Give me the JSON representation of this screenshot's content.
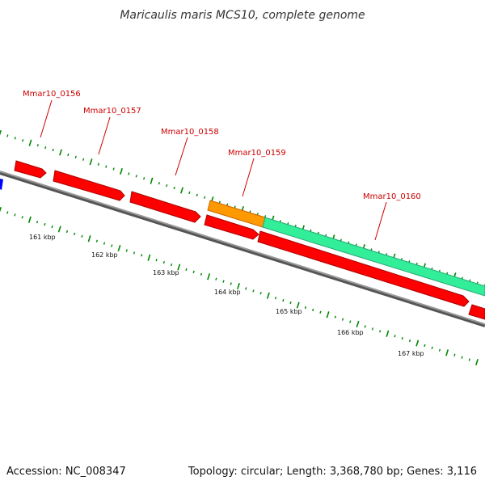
{
  "title": "Maricaulis maris MCS10, complete genome",
  "footer": {
    "accession": "Accession: NC_008347",
    "summary": "Topology: circular; Length: 3,368,780 bp; Genes: 3,116"
  },
  "colors": {
    "gene_forward": "#ff0000",
    "gene_highlight": "#ff9900",
    "gene_long": "#33ee99",
    "gene_left": "#0000ff",
    "backbone": "#888888",
    "ticks": "#008800",
    "label": "#cc0000"
  },
  "genes": [
    {
      "id": "Mmar10_0156"
    },
    {
      "id": "Mmar10_0157"
    },
    {
      "id": "Mmar10_0158"
    },
    {
      "id": "Mmar10_0159"
    },
    {
      "id": "Mmar10_0160"
    }
  ],
  "scale": {
    "unit": "kbp",
    "labels": [
      "161 kbp",
      "162 kbp",
      "163 kbp",
      "164 kbp",
      "165 kbp",
      "166 kbp",
      "167 kbp"
    ]
  }
}
